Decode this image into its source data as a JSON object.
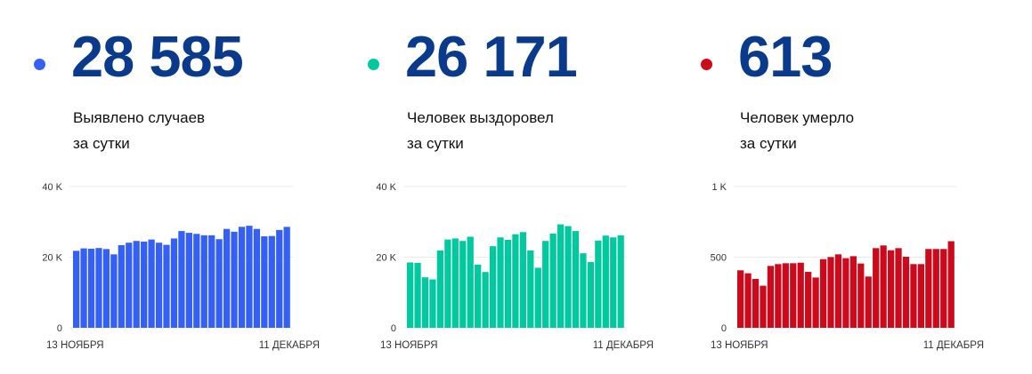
{
  "colors": {
    "number": "#0a3a8c",
    "cases": "#3560f5",
    "recovered": "#00c99f",
    "deaths": "#cc0a1c"
  },
  "chart_data": [
    {
      "type": "bar",
      "headline": "28 585",
      "caption_line1": "Выявлено случаев",
      "caption_line2": "за сутки",
      "color": "#3560f5",
      "x_start_label": "13 НОЯБРЯ",
      "x_end_label": "11 ДЕКАБРЯ",
      "ylim": [
        0,
        40000
      ],
      "yticks": [
        {
          "value": 0,
          "label": "0"
        },
        {
          "value": 20000,
          "label": "20 K"
        },
        {
          "value": 40000,
          "label": "40 K"
        }
      ],
      "grid": true,
      "values": [
        21800,
        22500,
        22400,
        22600,
        22300,
        20800,
        23400,
        24100,
        24600,
        24400,
        25000,
        24100,
        23500,
        25300,
        27400,
        26900,
        26600,
        26200,
        26200,
        25100,
        28000,
        27200,
        28600,
        28900,
        28000,
        25900,
        26000,
        27700,
        28585
      ]
    },
    {
      "type": "bar",
      "headline": "26 171",
      "caption_line1": "Человек выздоровел",
      "caption_line2": "за сутки",
      "color": "#00c99f",
      "x_start_label": "13 НОЯБРЯ",
      "x_end_label": "11 ДЕКАБРЯ",
      "ylim": [
        0,
        40000
      ],
      "yticks": [
        {
          "value": 0,
          "label": "0"
        },
        {
          "value": 20000,
          "label": "20 K"
        },
        {
          "value": 40000,
          "label": "40 K"
        }
      ],
      "grid": true,
      "values": [
        18500,
        18400,
        14300,
        13700,
        21900,
        25000,
        25300,
        24600,
        25800,
        17900,
        15800,
        23100,
        25600,
        24900,
        26500,
        27100,
        21900,
        17000,
        24600,
        26700,
        29300,
        28800,
        27400,
        21100,
        18600,
        24700,
        26100,
        25600,
        26171
      ]
    },
    {
      "type": "bar",
      "headline": "613",
      "caption_line1": "Человек умерло",
      "caption_line2": "за сутки",
      "color": "#cc0a1c",
      "x_start_label": "13 НОЯБРЯ",
      "x_end_label": "11 ДЕКАБРЯ",
      "ylim": [
        0,
        1000
      ],
      "yticks": [
        {
          "value": 0,
          "label": "0"
        },
        {
          "value": 500,
          "label": "500"
        },
        {
          "value": 1000,
          "label": "1 K"
        }
      ],
      "grid": true,
      "values": [
        407,
        386,
        346,
        298,
        438,
        451,
        457,
        457,
        461,
        396,
        356,
        486,
        501,
        520,
        493,
        507,
        455,
        363,
        564,
        583,
        549,
        564,
        503,
        451,
        451,
        558,
        558,
        558,
        613
      ]
    }
  ]
}
